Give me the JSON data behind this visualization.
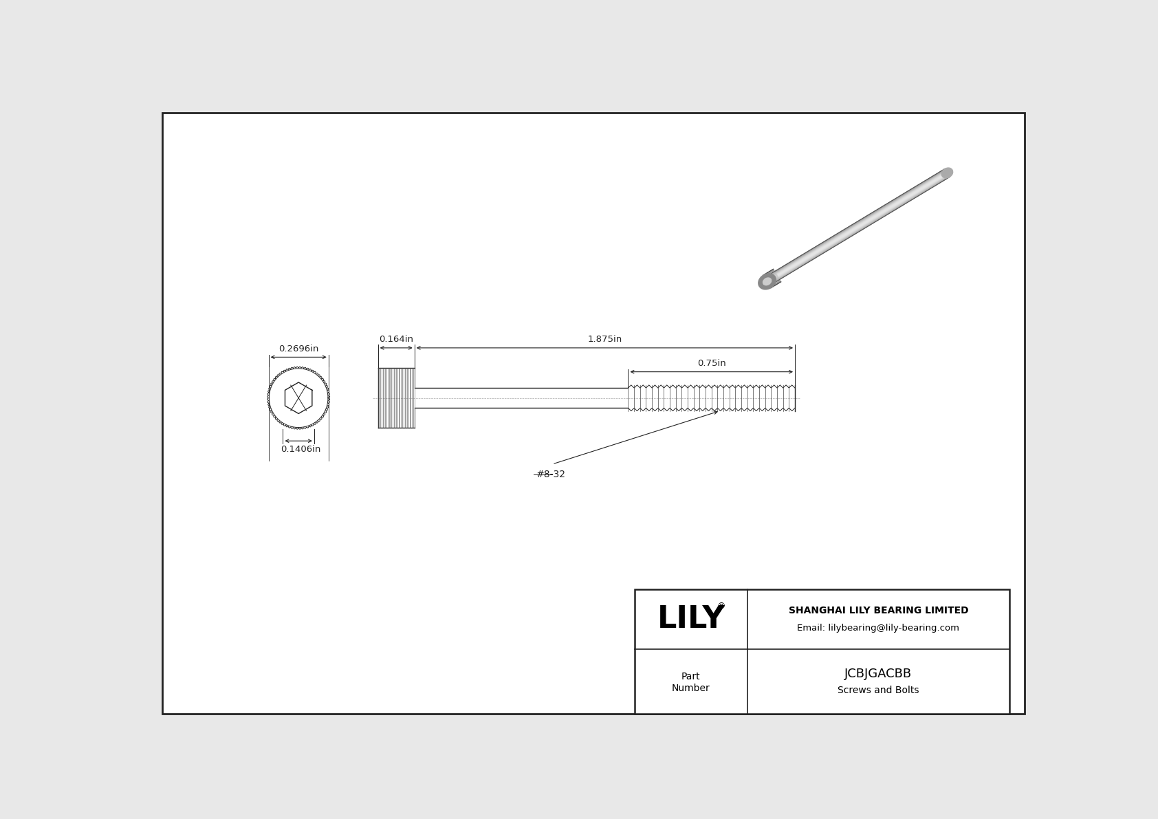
{
  "bg_color": "#e8e8e8",
  "drawing_bg": "#ffffff",
  "border_color": "#222222",
  "line_color": "#222222",
  "dim_color": "#222222",
  "title_company": "SHANGHAI LILY BEARING LIMITED",
  "title_email": "Email: lilybearing@lily-bearing.com",
  "part_label": "Part\nNumber",
  "part_number": "JCBJGACBB",
  "part_type": "Screws and Bolts",
  "lily_text": "LILY",
  "dim_head_diameter": "0.2696in",
  "dim_head_length": "0.164in",
  "dim_total_length": "1.875in",
  "dim_thread_length": "0.75in",
  "dim_socket": "0.1406in",
  "thread_label": "#8-32",
  "font_size_dim": 9.5,
  "font_size_lily": 32,
  "font_size_part_num": 13,
  "font_size_company": 10,
  "font_size_thread": 10
}
